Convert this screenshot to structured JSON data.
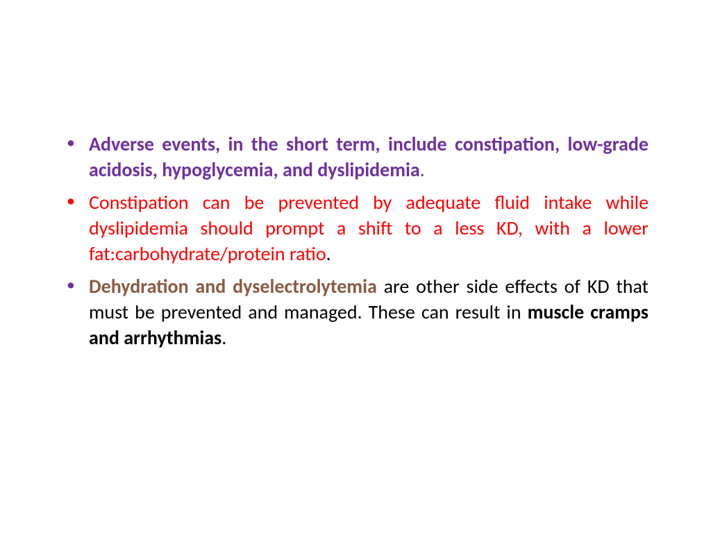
{
  "slide": {
    "background_color": "#ffffff",
    "font_family": "Calibri",
    "body_fontsize_pt": 28,
    "line_height": 1.32,
    "text_align": "justify",
    "bullet_char": "•",
    "colors": {
      "purple": "#7030a0",
      "red": "#ff0000",
      "black": "#000000",
      "brown": "#8a5a44"
    },
    "bullets": [
      {
        "marker_color": "#7030a0",
        "spans": [
          {
            "text": "Adverse events, in the short term, include constipation, low-grade acidosis, hypoglycemia, and dyslipidemia",
            "color": "#7030a0",
            "bold": true
          },
          {
            "text": ".",
            "color": "#7030a0",
            "bold": false
          }
        ]
      },
      {
        "marker_color": "#ff0000",
        "spans": [
          {
            "text": "Constipation can be prevented by adequate fluid intake while dyslipidemia should prompt a shift to a less KD, with a lower fat:carbohydrate/protein ratio",
            "color": "#ff0000",
            "bold": false
          },
          {
            "text": ".",
            "color": "#000000",
            "bold": false
          }
        ]
      },
      {
        "marker_color": "#7030a0",
        "spans": [
          {
            "text": "Dehydration and dyselectrolytemia",
            "color": "#8a5a44",
            "bold": true
          },
          {
            "text": " are other side effects of KD that must be prevented and managed. These can result in ",
            "color": "#000000",
            "bold": false
          },
          {
            "text": "muscle cramps and arrhythmias",
            "color": "#000000",
            "bold": true
          },
          {
            "text": ".",
            "color": "#000000",
            "bold": false
          }
        ]
      }
    ]
  }
}
